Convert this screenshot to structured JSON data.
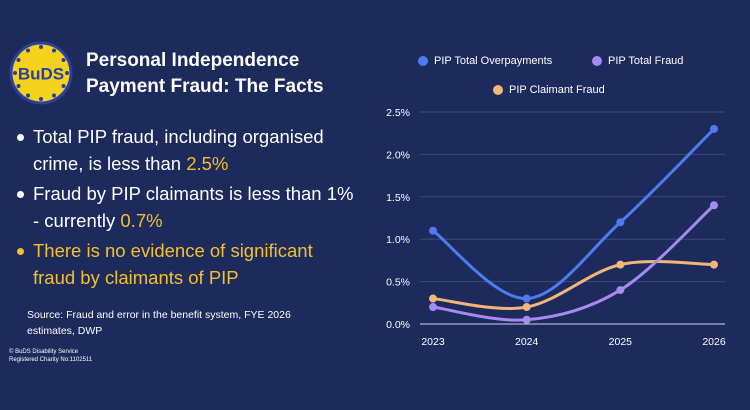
{
  "logo": {
    "text": "BuDS"
  },
  "title": {
    "line1": "Personal Independence",
    "line2": "Payment Fraud: The Facts"
  },
  "bullets": [
    {
      "text": "Total PIP fraud, including organised crime, is less than ",
      "highlight": "2.5%"
    },
    {
      "text": "Fraud by PIP claimants is less than 1% - currently ",
      "highlight": "0.7%"
    },
    {
      "text": "There is no evidence of significant fraud by claimants of PIP",
      "highlight": ""
    }
  ],
  "source": "Source: Fraud and error in the benefit system, FYE 2026 estimates, DWP",
  "footer": {
    "line1": "© BuDS Disability Service",
    "line2": "Registered Charity No:1102511"
  },
  "colors": {
    "background": "#1c2a5c",
    "highlight": "#f3c02e",
    "overpayments": "#4f7bf0",
    "total_fraud": "#a78bf0",
    "claimant_fraud": "#f2b57a"
  },
  "chart_data": {
    "type": "line",
    "x": [
      "2023",
      "2024",
      "2025",
      "2026"
    ],
    "series": [
      {
        "name": "PIP Total Overpayments",
        "values": [
          1.1,
          0.3,
          1.2,
          2.3
        ]
      },
      {
        "name": "PIP Total Fraud",
        "values": [
          0.2,
          0.05,
          0.4,
          1.4
        ]
      },
      {
        "name": "PIP Claimant Fraud",
        "values": [
          0.3,
          0.2,
          0.7,
          0.7
        ]
      }
    ],
    "y_ticks": [
      "0.0%",
      "0.5%",
      "1.0%",
      "1.5%",
      "2.0%",
      "2.5%"
    ],
    "ylim": [
      0,
      2.5
    ],
    "grid": "horizontal",
    "legend": "top"
  }
}
